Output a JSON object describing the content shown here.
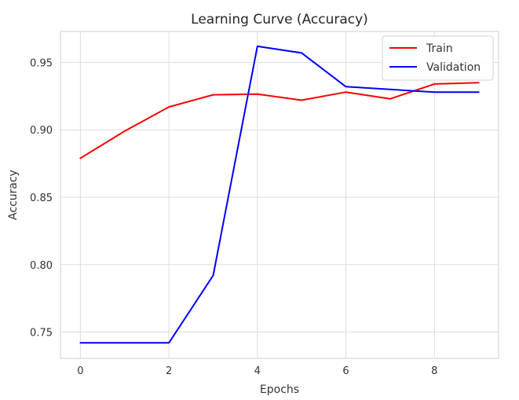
{
  "chart_data": {
    "type": "line",
    "title": "Learning Curve (Accuracy)",
    "xlabel": "Epochs",
    "ylabel": "Accuracy",
    "x": [
      0,
      1,
      2,
      3,
      4,
      5,
      6,
      7,
      8,
      9
    ],
    "xlim": [
      -0.45,
      9.45
    ],
    "ylim": [
      0.7305,
      0.973
    ],
    "xticks": [
      0,
      2,
      4,
      6,
      8
    ],
    "yticks": [
      0.75,
      0.8,
      0.85,
      0.9,
      0.95
    ],
    "xtick_labels": [
      "0",
      "2",
      "4",
      "6",
      "8"
    ],
    "ytick_labels": [
      "0.75",
      "0.80",
      "0.85",
      "0.90",
      "0.95"
    ],
    "grid": true,
    "legend_position": "top-right",
    "series": [
      {
        "name": "Train",
        "color": "#ff0000",
        "values": [
          0.879,
          0.899,
          0.917,
          0.926,
          0.9265,
          0.922,
          0.928,
          0.923,
          0.934,
          0.935
        ]
      },
      {
        "name": "Validation",
        "color": "#0000ff",
        "values": [
          0.742,
          0.742,
          0.742,
          0.792,
          0.962,
          0.957,
          0.932,
          0.93,
          0.928,
          0.928
        ]
      }
    ]
  }
}
